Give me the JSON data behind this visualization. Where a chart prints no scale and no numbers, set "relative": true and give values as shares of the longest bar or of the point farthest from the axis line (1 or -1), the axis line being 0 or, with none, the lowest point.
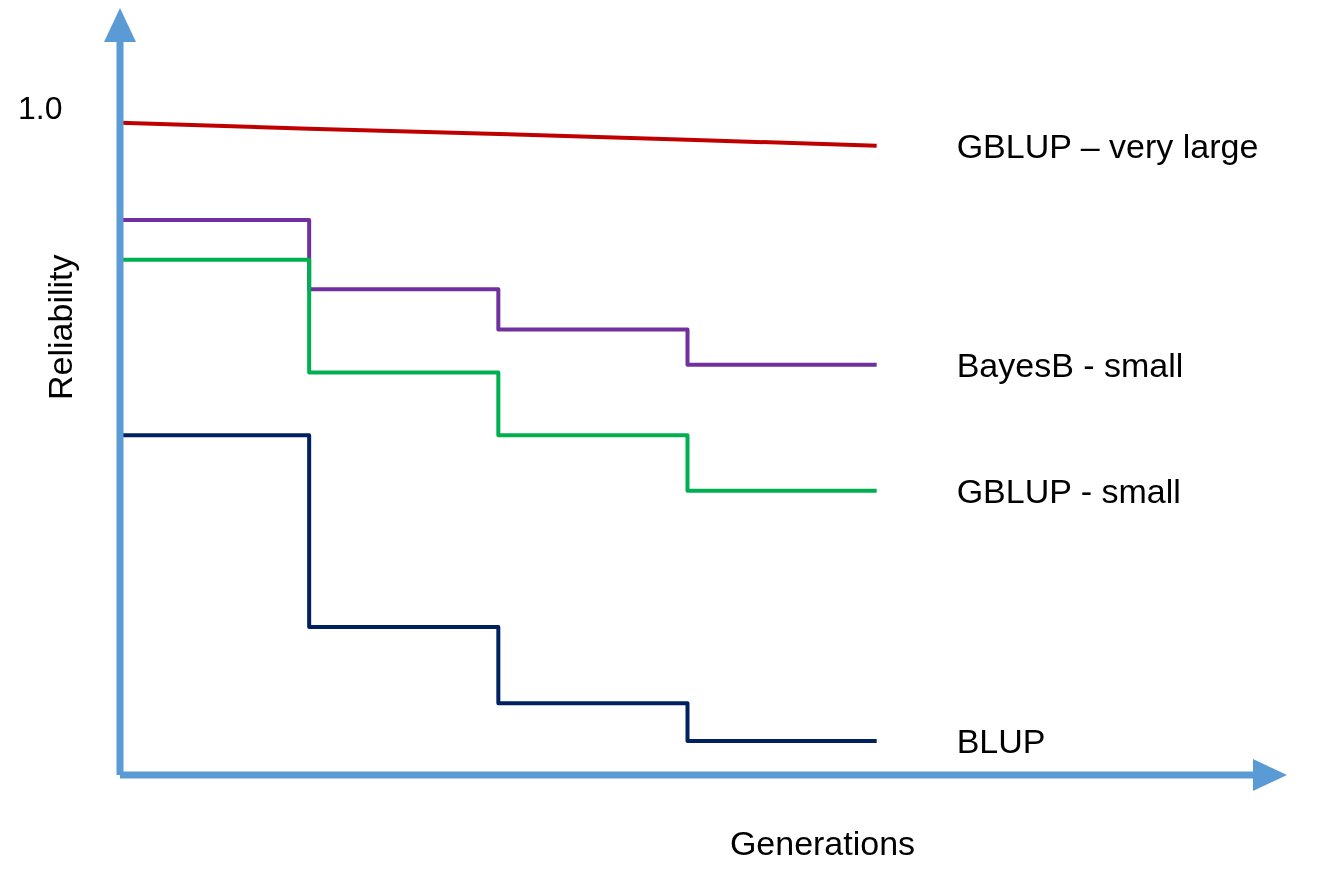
{
  "chart_data": {
    "type": "step",
    "relative": true,
    "xlabel": "Generations",
    "ylabel": "Reliability",
    "annotations": [
      "1.0"
    ],
    "categories": [
      null,
      null,
      null,
      null,
      null
    ],
    "legend": false,
    "grid": false,
    "marker": "none",
    "line_style": "solid",
    "series": [
      {
        "name": "GBLUP – very large",
        "type": "line",
        "color": "#c00000",
        "values": [
          1.0,
          0.991,
          0.983,
          0.974,
          0.965
        ]
      },
      {
        "name": "BayesB - small",
        "color": "#7030a0",
        "values": [
          0.851,
          0.745,
          0.683,
          0.629,
          0.629
        ]
      },
      {
        "name": "GBLUP - small",
        "color": "#00b050",
        "values": [
          0.79,
          0.617,
          0.521,
          0.436,
          0.436
        ]
      },
      {
        "name": "BLUP",
        "color": "#002060",
        "values": [
          0.521,
          0.227,
          0.11,
          0.052,
          0.052
        ]
      }
    ]
  }
}
